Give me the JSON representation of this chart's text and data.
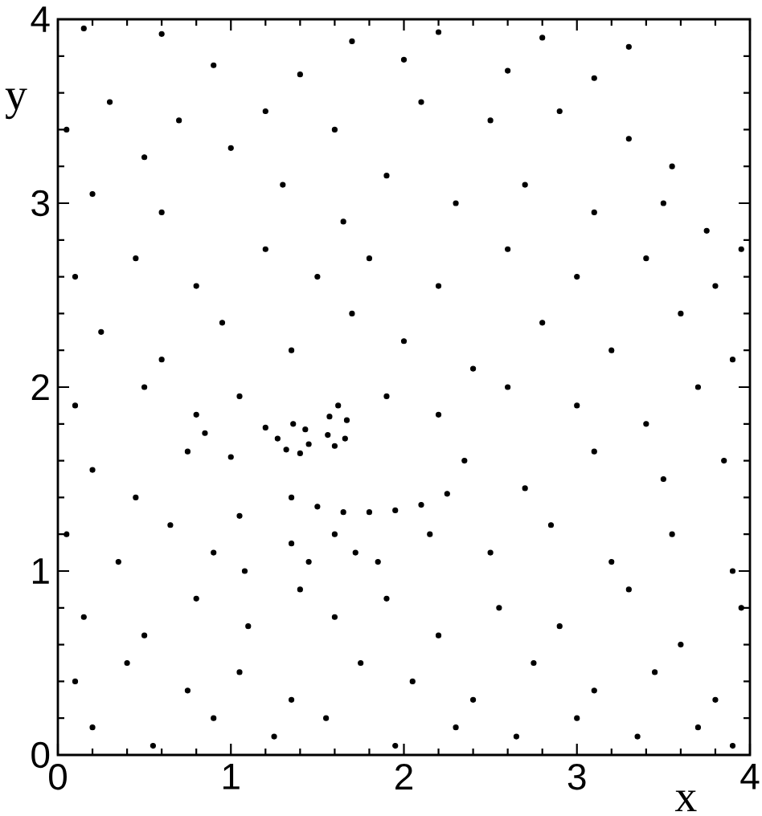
{
  "chart_data": {
    "type": "scatter",
    "xlabel": "x",
    "ylabel": "y",
    "xlim": [
      0,
      4
    ],
    "ylim": [
      0,
      4
    ],
    "xticks": [
      0,
      1,
      2,
      3,
      4
    ],
    "yticks": [
      0,
      1,
      2,
      3,
      4
    ],
    "marker": "circle",
    "color": "#000000",
    "x": [
      1.27,
      1.32,
      1.4,
      1.45,
      1.43,
      1.36,
      1.56,
      1.6,
      1.66,
      1.67,
      1.62,
      1.57,
      1.35,
      1.5,
      1.65,
      1.8,
      1.95,
      2.1,
      2.25,
      1.0,
      1.05,
      1.08,
      1.2,
      0.85,
      1.35,
      1.45,
      1.6,
      1.72,
      0.15,
      0.6,
      1.7,
      2.2,
      2.8,
      3.3,
      0.9,
      1.4,
      2.0,
      2.6,
      3.1,
      0.05,
      0.3,
      0.7,
      1.2,
      1.6,
      2.1,
      2.5,
      2.9,
      3.3,
      3.55,
      0.5,
      1.0,
      0.2,
      0.6,
      1.3,
      1.65,
      1.9,
      2.3,
      2.7,
      3.1,
      3.5,
      3.75,
      0.1,
      0.45,
      0.8,
      1.2,
      1.5,
      1.8,
      2.2,
      2.6,
      3.0,
      3.4,
      3.8,
      3.95,
      0.25,
      0.6,
      0.95,
      1.35,
      1.7,
      2.0,
      2.4,
      2.8,
      3.2,
      3.6,
      3.9,
      0.1,
      0.5,
      0.8,
      1.05,
      1.9,
      2.2,
      2.6,
      3.0,
      3.4,
      3.7,
      0.2,
      0.45,
      0.75,
      2.35,
      2.7,
      3.1,
      3.5,
      3.85,
      0.05,
      0.35,
      0.65,
      0.9,
      1.85,
      2.15,
      2.5,
      2.85,
      3.2,
      3.55,
      3.9,
      0.15,
      0.5,
      0.8,
      1.1,
      1.4,
      1.6,
      1.9,
      2.2,
      2.55,
      2.9,
      3.3,
      3.6,
      3.95,
      0.1,
      0.4,
      0.75,
      1.05,
      1.35,
      1.75,
      2.05,
      2.4,
      2.75,
      3.1,
      3.45,
      3.8,
      0.2,
      0.55,
      0.9,
      1.25,
      1.55,
      1.95,
      2.3,
      2.65,
      3.0,
      3.35,
      3.7,
      3.9
    ],
    "values": [
      1.72,
      1.66,
      1.64,
      1.69,
      1.77,
      1.8,
      1.74,
      1.68,
      1.72,
      1.82,
      1.9,
      1.84,
      1.4,
      1.35,
      1.32,
      1.32,
      1.33,
      1.36,
      1.42,
      1.62,
      1.3,
      1.0,
      1.78,
      1.75,
      1.15,
      1.05,
      1.2,
      1.1,
      3.95,
      3.92,
      3.88,
      3.93,
      3.9,
      3.85,
      3.75,
      3.7,
      3.78,
      3.72,
      3.68,
      3.4,
      3.55,
      3.45,
      3.5,
      3.4,
      3.55,
      3.45,
      3.5,
      3.35,
      3.2,
      3.25,
      3.3,
      3.05,
      2.95,
      3.1,
      2.9,
      3.15,
      3.0,
      3.1,
      2.95,
      3.0,
      2.85,
      2.6,
      2.7,
      2.55,
      2.75,
      2.6,
      2.7,
      2.55,
      2.75,
      2.6,
      2.7,
      2.55,
      2.75,
      2.3,
      2.15,
      2.35,
      2.2,
      2.4,
      2.25,
      2.1,
      2.35,
      2.2,
      2.4,
      2.15,
      1.9,
      2.0,
      1.85,
      1.95,
      1.95,
      1.85,
      2.0,
      1.9,
      1.8,
      2.0,
      1.55,
      1.4,
      1.65,
      1.6,
      1.45,
      1.65,
      1.5,
      1.6,
      1.2,
      1.05,
      1.25,
      1.1,
      1.05,
      1.2,
      1.1,
      1.25,
      1.05,
      1.2,
      1.0,
      0.75,
      0.65,
      0.85,
      0.7,
      0.9,
      0.75,
      0.85,
      0.65,
      0.8,
      0.7,
      0.9,
      0.6,
      0.8,
      0.4,
      0.5,
      0.35,
      0.45,
      0.3,
      0.5,
      0.4,
      0.3,
      0.5,
      0.35,
      0.45,
      0.3,
      0.15,
      0.05,
      0.2,
      0.1,
      0.2,
      0.05,
      0.15,
      0.1,
      0.2,
      0.1,
      0.15,
      0.05
    ]
  }
}
